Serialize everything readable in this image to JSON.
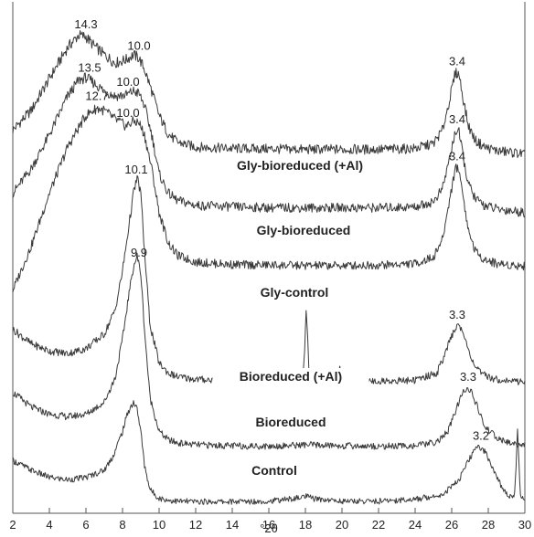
{
  "chart_data": {
    "type": "line",
    "title": "",
    "xlabel": "°2θ",
    "ylabel": "",
    "xlim": [
      2,
      30
    ],
    "xticks": [
      "2",
      "4",
      "6",
      "8",
      "10",
      "12",
      "14",
      "16",
      "18",
      "20",
      "22",
      "24",
      "26",
      "28",
      "30"
    ],
    "line_color": "#3a3a3a",
    "series": [
      {
        "name": "Gly-bioreduced (+Al)",
        "x": [
          2.0,
          3.0,
          4.0,
          5.0,
          5.6,
          6.0,
          6.4,
          7.0,
          7.6,
          8.2,
          8.6,
          8.9,
          9.2,
          9.6,
          10.0,
          10.5,
          11.0,
          12.0,
          14.0,
          16.0,
          18.0,
          20.0,
          22.0,
          24.0,
          25.0,
          25.5,
          25.9,
          26.2,
          26.4,
          26.6,
          26.9,
          27.3,
          27.8,
          28.5,
          29.3,
          30.0
        ],
        "y": [
          0.77,
          0.81,
          0.876,
          0.94,
          0.965,
          0.962,
          0.945,
          0.925,
          0.908,
          0.915,
          0.925,
          0.918,
          0.895,
          0.85,
          0.8,
          0.762,
          0.745,
          0.735,
          0.732,
          0.731,
          0.73,
          0.73,
          0.73,
          0.732,
          0.742,
          0.77,
          0.835,
          0.888,
          0.885,
          0.84,
          0.78,
          0.748,
          0.735,
          0.727,
          0.724,
          0.72
        ],
        "peaks": [
          {
            "x": 6.0,
            "label": "14.3"
          },
          {
            "x": 8.9,
            "label": "10.0"
          },
          {
            "x": 26.3,
            "label": "3.4"
          }
        ]
      },
      {
        "name": "Gly-bioreduced",
        "x": [
          2.0,
          3.0,
          4.0,
          5.0,
          5.6,
          6.0,
          6.5,
          7.0,
          7.6,
          8.2,
          8.6,
          8.9,
          9.2,
          9.6,
          10.0,
          10.5,
          11.0,
          12.0,
          14.0,
          16.0,
          18.0,
          20.0,
          22.0,
          24.0,
          25.0,
          25.5,
          25.9,
          26.2,
          26.4,
          26.6,
          26.9,
          27.3,
          27.8,
          28.5,
          29.3,
          30.0
        ],
        "y": [
          0.64,
          0.69,
          0.76,
          0.84,
          0.872,
          0.878,
          0.865,
          0.85,
          0.84,
          0.842,
          0.85,
          0.845,
          0.82,
          0.76,
          0.68,
          0.64,
          0.625,
          0.615,
          0.612,
          0.61,
          0.61,
          0.61,
          0.61,
          0.612,
          0.622,
          0.65,
          0.715,
          0.768,
          0.765,
          0.72,
          0.66,
          0.628,
          0.615,
          0.607,
          0.604,
          0.6
        ],
        "peaks": [
          {
            "x": 6.2,
            "label": "13.5"
          },
          {
            "x": 8.3,
            "label": "10.0"
          },
          {
            "x": 26.3,
            "label": "3.4"
          }
        ]
      },
      {
        "name": "Gly-control",
        "x": [
          2.0,
          3.0,
          4.0,
          5.0,
          5.6,
          6.0,
          6.6,
          7.0,
          7.6,
          8.2,
          8.6,
          8.9,
          9.2,
          9.6,
          10.0,
          10.5,
          11.0,
          12.0,
          14.0,
          16.0,
          18.0,
          20.0,
          22.0,
          24.0,
          25.0,
          25.5,
          25.9,
          26.2,
          26.4,
          26.6,
          26.9,
          27.3,
          27.8,
          28.5,
          29.3,
          30.0
        ],
        "y": [
          0.44,
          0.53,
          0.64,
          0.735,
          0.775,
          0.8,
          0.815,
          0.81,
          0.792,
          0.778,
          0.788,
          0.785,
          0.76,
          0.69,
          0.6,
          0.538,
          0.512,
          0.498,
          0.493,
          0.492,
          0.491,
          0.491,
          0.492,
          0.495,
          0.508,
          0.545,
          0.63,
          0.692,
          0.69,
          0.64,
          0.565,
          0.52,
          0.503,
          0.495,
          0.492,
          0.49
        ],
        "peaks": [
          {
            "x": 6.6,
            "label": "12.7"
          },
          {
            "x": 8.3,
            "label": "10.0"
          },
          {
            "x": 26.3,
            "label": "3.4"
          }
        ]
      },
      {
        "name": "Bioreduced (+Al)",
        "x": [
          2.0,
          3.0,
          4.0,
          5.0,
          6.0,
          7.0,
          7.6,
          8.0,
          8.3,
          8.6,
          8.8,
          9.0,
          9.2,
          9.5,
          10.0,
          10.5,
          11.0,
          12.0,
          14.0,
          16.0,
          17.6,
          17.9,
          18.05,
          18.2,
          18.5,
          19.0,
          19.7,
          19.9,
          20.1,
          20.4,
          21.0,
          22.0,
          24.0,
          25.2,
          25.8,
          26.2,
          26.5,
          26.8,
          27.2,
          27.6,
          28.3,
          29.0,
          30.0
        ],
        "y": [
          0.36,
          0.33,
          0.315,
          0.31,
          0.32,
          0.35,
          0.4,
          0.48,
          0.56,
          0.64,
          0.672,
          0.64,
          0.52,
          0.37,
          0.29,
          0.27,
          0.262,
          0.257,
          0.254,
          0.253,
          0.256,
          0.268,
          0.41,
          0.265,
          0.256,
          0.254,
          0.256,
          0.28,
          0.258,
          0.254,
          0.253,
          0.253,
          0.255,
          0.27,
          0.325,
          0.365,
          0.365,
          0.33,
          0.29,
          0.268,
          0.258,
          0.254,
          0.252
        ],
        "peaks": [
          {
            "x": 8.75,
            "label": "10.1"
          },
          {
            "x": 26.3,
            "label": "3.3"
          }
        ]
      },
      {
        "name": "Bioreduced",
        "x": [
          2.0,
          3.0,
          4.0,
          5.0,
          6.0,
          7.0,
          7.6,
          8.0,
          8.3,
          8.6,
          8.8,
          9.0,
          9.2,
          9.5,
          10.0,
          10.5,
          11.0,
          12.0,
          14.0,
          16.0,
          18.0,
          20.0,
          22.0,
          24.0,
          25.2,
          25.8,
          26.3,
          26.7,
          27.0,
          27.4,
          27.8,
          28.5,
          29.2,
          30.0
        ],
        "y": [
          0.23,
          0.2,
          0.185,
          0.18,
          0.185,
          0.21,
          0.26,
          0.34,
          0.42,
          0.49,
          0.51,
          0.475,
          0.36,
          0.22,
          0.15,
          0.132,
          0.126,
          0.122,
          0.12,
          0.119,
          0.122,
          0.12,
          0.119,
          0.12,
          0.128,
          0.15,
          0.2,
          0.238,
          0.236,
          0.2,
          0.16,
          0.135,
          0.125,
          0.122
        ],
        "peaks": [
          {
            "x": 8.9,
            "label": "9.9"
          },
          {
            "x": 26.9,
            "label": "3.3"
          }
        ]
      },
      {
        "name": "Control",
        "x": [
          2.0,
          3.0,
          4.0,
          5.0,
          6.0,
          7.0,
          7.5,
          8.0,
          8.3,
          8.6,
          8.8,
          9.0,
          9.2,
          9.5,
          10.0,
          10.5,
          11.0,
          12.0,
          14.0,
          16.0,
          17.5,
          18.0,
          18.5,
          20.0,
          22.0,
          24.0,
          25.5,
          26.4,
          27.0,
          27.4,
          27.7,
          28.0,
          28.4,
          28.8,
          29.2,
          29.45,
          29.6,
          29.75,
          30.0
        ],
        "y": [
          0.09,
          0.07,
          0.055,
          0.05,
          0.055,
          0.07,
          0.1,
          0.15,
          0.19,
          0.21,
          0.195,
          0.15,
          0.08,
          0.03,
          0.012,
          0.008,
          0.006,
          0.005,
          0.005,
          0.006,
          0.012,
          0.016,
          0.011,
          0.006,
          0.006,
          0.01,
          0.02,
          0.05,
          0.095,
          0.118,
          0.115,
          0.095,
          0.06,
          0.03,
          0.016,
          0.02,
          0.155,
          0.015,
          0.01
        ],
        "peaks": [
          {
            "x": 27.6,
            "label": "3.2"
          }
        ]
      }
    ]
  }
}
